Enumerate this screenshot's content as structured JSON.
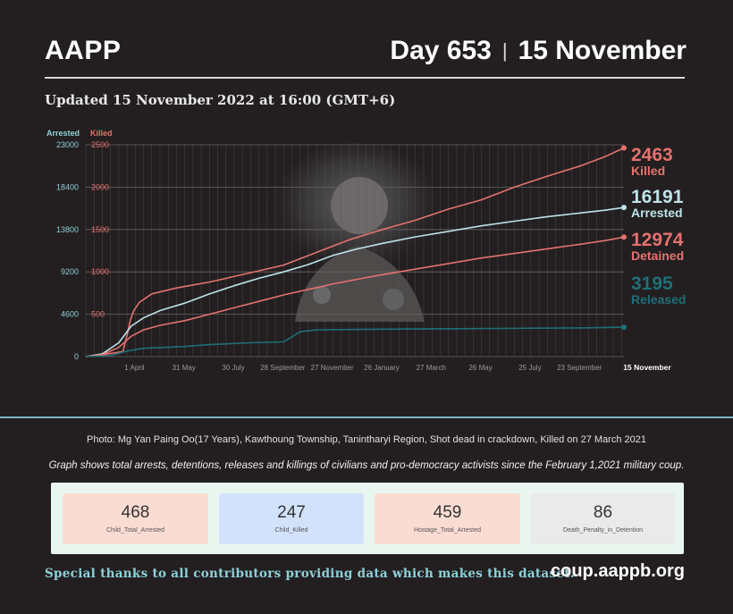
{
  "header": {
    "brand": "AAPP",
    "day": "Day 653",
    "separator": "|",
    "date": "15 November",
    "updated": "Updated 15 November 2022 at 16:00 (GMT+6)"
  },
  "photo_credit": "Photo: Mg Yan Paing Oo(17 Years), Kawthoung Township, Tanintharyi Region, Shot dead in crackdown, Killed on 27 March 2021",
  "description": "Graph shows total arrests, detentions, releases and killings of civilians and pro-democracy activists since the February 1,2021 military coup.",
  "chart_data": {
    "type": "line",
    "left_axis_title": "Arrested",
    "right_axis_title": "Killed",
    "left_ticks": [
      "23000",
      "18400",
      "13800",
      "9200",
      "4600",
      "0"
    ],
    "right_ticks": [
      "2500",
      "2000",
      "1500",
      "1000",
      "500"
    ],
    "ylim_arrested": [
      0,
      23000
    ],
    "ylim_killed": [
      0,
      2500
    ],
    "x_ticks": [
      "1 April",
      "31 May",
      "30 July",
      "28 September",
      "27 November",
      "26 January",
      "27 March",
      "26 May",
      "25 July",
      "23 September",
      "15 November"
    ],
    "x_tick_days": [
      59,
      119,
      179,
      239,
      299,
      359,
      419,
      479,
      539,
      599,
      653
    ],
    "x_range_days": [
      0,
      653
    ],
    "grid": true,
    "series": [
      {
        "name": "Killed",
        "axis": "killed",
        "color": "#e4726f",
        "final_value": "2463",
        "points": [
          [
            0,
            0
          ],
          [
            20,
            20
          ],
          [
            45,
            60
          ],
          [
            50,
            250
          ],
          [
            54,
            430
          ],
          [
            58,
            540
          ],
          [
            65,
            640
          ],
          [
            80,
            740
          ],
          [
            110,
            810
          ],
          [
            150,
            880
          ],
          [
            200,
            990
          ],
          [
            240,
            1080
          ],
          [
            280,
            1230
          ],
          [
            320,
            1380
          ],
          [
            360,
            1500
          ],
          [
            400,
            1610
          ],
          [
            440,
            1740
          ],
          [
            480,
            1850
          ],
          [
            520,
            2000
          ],
          [
            560,
            2130
          ],
          [
            600,
            2250
          ],
          [
            630,
            2360
          ],
          [
            653,
            2463
          ]
        ]
      },
      {
        "name": "Arrested",
        "axis": "arrested",
        "color": "#bde3e8",
        "final_value": "16191",
        "points": [
          [
            0,
            0
          ],
          [
            20,
            300
          ],
          [
            40,
            1500
          ],
          [
            55,
            3300
          ],
          [
            70,
            4200
          ],
          [
            90,
            5000
          ],
          [
            120,
            5800
          ],
          [
            150,
            6800
          ],
          [
            180,
            7700
          ],
          [
            210,
            8500
          ],
          [
            240,
            9200
          ],
          [
            270,
            10000
          ],
          [
            300,
            11000
          ],
          [
            330,
            11700
          ],
          [
            360,
            12300
          ],
          [
            400,
            13000
          ],
          [
            440,
            13600
          ],
          [
            480,
            14200
          ],
          [
            520,
            14700
          ],
          [
            560,
            15200
          ],
          [
            600,
            15600
          ],
          [
            630,
            15900
          ],
          [
            653,
            16191
          ]
        ]
      },
      {
        "name": "Detained",
        "axis": "arrested",
        "color": "#e4726f",
        "final_value": "12974",
        "points": [
          [
            0,
            0
          ],
          [
            20,
            200
          ],
          [
            40,
            1000
          ],
          [
            55,
            2200
          ],
          [
            70,
            2900
          ],
          [
            90,
            3400
          ],
          [
            120,
            3900
          ],
          [
            150,
            4600
          ],
          [
            180,
            5300
          ],
          [
            210,
            6000
          ],
          [
            240,
            6700
          ],
          [
            270,
            7300
          ],
          [
            300,
            7900
          ],
          [
            330,
            8400
          ],
          [
            360,
            8900
          ],
          [
            400,
            9500
          ],
          [
            440,
            10100
          ],
          [
            480,
            10700
          ],
          [
            520,
            11200
          ],
          [
            560,
            11700
          ],
          [
            600,
            12200
          ],
          [
            630,
            12600
          ],
          [
            653,
            12974
          ]
        ]
      },
      {
        "name": "Released",
        "axis": "arrested",
        "color": "#1f6f78",
        "final_value": "3195",
        "points": [
          [
            0,
            0
          ],
          [
            30,
            100
          ],
          [
            50,
            600
          ],
          [
            70,
            900
          ],
          [
            120,
            1100
          ],
          [
            150,
            1300
          ],
          [
            200,
            1500
          ],
          [
            240,
            1600
          ],
          [
            260,
            2700
          ],
          [
            280,
            2900
          ],
          [
            330,
            2950
          ],
          [
            400,
            3000
          ],
          [
            500,
            3060
          ],
          [
            600,
            3120
          ],
          [
            653,
            3195
          ]
        ]
      }
    ]
  },
  "stats": [
    {
      "value": "468",
      "label": "Child_Total_Arrested",
      "color": "#fbdcd3"
    },
    {
      "value": "247",
      "label": "Child_Killed",
      "color": "#d3e2fb"
    },
    {
      "value": "459",
      "label": "Hostage_Total_Arrested",
      "color": "#fbdcd3"
    },
    {
      "value": "86",
      "label": "Death_Penalty_in_Detention",
      "color": "#eaeaea"
    }
  ],
  "footer": {
    "thanks": "Special thanks to all contributors providing data which makes this dataset.",
    "site": "coup.aappb.org"
  }
}
